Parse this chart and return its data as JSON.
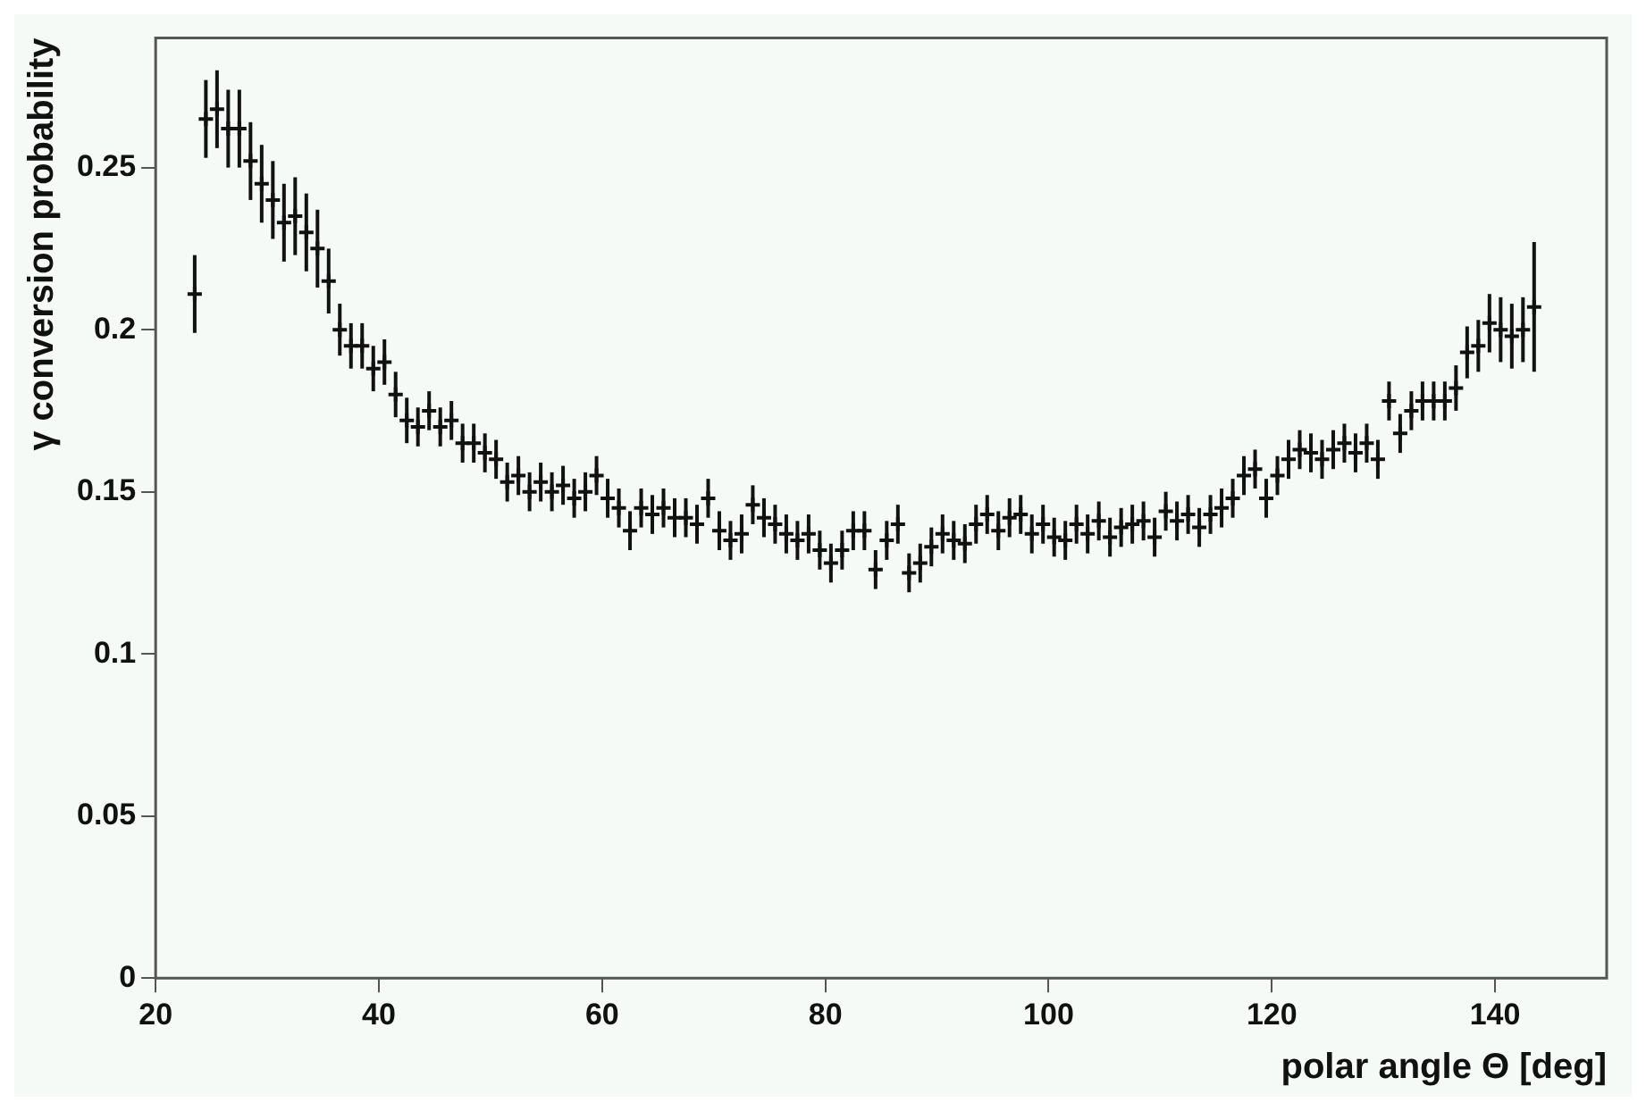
{
  "chart_data": {
    "type": "scatter",
    "xlabel": "polar angle Θ [deg]",
    "ylabel": "γ conversion probability",
    "x": [
      23.5,
      24.5,
      25.5,
      26.5,
      27.5,
      28.5,
      29.5,
      30.5,
      31.5,
      32.5,
      33.5,
      34.5,
      35.5,
      36.5,
      37.5,
      38.5,
      39.5,
      40.5,
      41.5,
      42.5,
      43.5,
      44.5,
      45.5,
      46.5,
      47.5,
      48.5,
      49.5,
      50.5,
      51.5,
      52.5,
      53.5,
      54.5,
      55.5,
      56.5,
      57.5,
      58.5,
      59.5,
      60.5,
      61.5,
      62.5,
      63.5,
      64.5,
      65.5,
      66.5,
      67.5,
      68.5,
      69.5,
      70.5,
      71.5,
      72.5,
      73.5,
      74.5,
      75.5,
      76.5,
      77.5,
      78.5,
      79.5,
      80.5,
      81.5,
      82.5,
      83.5,
      84.5,
      85.5,
      86.5,
      87.5,
      88.5,
      89.5,
      90.5,
      91.5,
      92.5,
      93.5,
      94.5,
      95.5,
      96.5,
      97.5,
      98.5,
      99.5,
      100.5,
      101.5,
      102.5,
      103.5,
      104.5,
      105.5,
      106.5,
      107.5,
      108.5,
      109.5,
      110.5,
      111.5,
      112.5,
      113.5,
      114.5,
      115.5,
      116.5,
      117.5,
      118.5,
      119.5,
      120.5,
      121.5,
      122.5,
      123.5,
      124.5,
      125.5,
      126.5,
      127.5,
      128.5,
      129.5,
      130.5,
      131.5,
      132.5,
      133.5,
      134.5,
      135.5,
      136.5,
      137.5,
      138.5,
      139.5,
      140.5,
      141.5,
      142.5,
      143.5
    ],
    "series": [
      {
        "color": "#111111",
        "values": [
          0.211,
          0.265,
          0.268,
          0.262,
          0.262,
          0.252,
          0.245,
          0.24,
          0.233,
          0.235,
          0.23,
          0.225,
          0.215,
          0.2,
          0.195,
          0.195,
          0.188,
          0.19,
          0.18,
          0.172,
          0.17,
          0.175,
          0.17,
          0.172,
          0.165,
          0.165,
          0.162,
          0.16,
          0.153,
          0.155,
          0.15,
          0.153,
          0.15,
          0.152,
          0.148,
          0.15,
          0.155,
          0.148,
          0.145,
          0.138,
          0.145,
          0.143,
          0.145,
          0.142,
          0.142,
          0.14,
          0.148,
          0.138,
          0.135,
          0.137,
          0.146,
          0.142,
          0.14,
          0.137,
          0.135,
          0.137,
          0.132,
          0.128,
          0.132,
          0.138,
          0.138,
          0.126,
          0.135,
          0.14,
          0.125,
          0.128,
          0.133,
          0.137,
          0.135,
          0.134,
          0.14,
          0.143,
          0.138,
          0.142,
          0.143,
          0.137,
          0.14,
          0.136,
          0.135,
          0.14,
          0.137,
          0.141,
          0.136,
          0.139,
          0.14,
          0.141,
          0.136,
          0.144,
          0.141,
          0.143,
          0.139,
          0.143,
          0.145,
          0.148,
          0.155,
          0.157,
          0.148,
          0.155,
          0.16,
          0.163,
          0.162,
          0.16,
          0.163,
          0.165,
          0.162,
          0.165,
          0.16,
          0.178,
          0.168,
          0.175,
          0.178,
          0.178,
          0.178,
          0.182,
          0.193,
          0.195,
          0.202,
          0.2,
          0.198,
          0.2,
          0.207
        ],
        "errors": [
          0.012,
          0.012,
          0.012,
          0.012,
          0.012,
          0.012,
          0.012,
          0.012,
          0.012,
          0.012,
          0.012,
          0.012,
          0.01,
          0.008,
          0.007,
          0.007,
          0.007,
          0.007,
          0.007,
          0.007,
          0.006,
          0.006,
          0.006,
          0.006,
          0.006,
          0.006,
          0.006,
          0.006,
          0.006,
          0.006,
          0.006,
          0.006,
          0.006,
          0.006,
          0.006,
          0.006,
          0.006,
          0.006,
          0.006,
          0.006,
          0.006,
          0.006,
          0.006,
          0.006,
          0.006,
          0.006,
          0.006,
          0.006,
          0.006,
          0.006,
          0.006,
          0.006,
          0.006,
          0.006,
          0.006,
          0.006,
          0.006,
          0.006,
          0.006,
          0.006,
          0.006,
          0.006,
          0.006,
          0.006,
          0.006,
          0.006,
          0.006,
          0.006,
          0.006,
          0.006,
          0.006,
          0.006,
          0.006,
          0.006,
          0.006,
          0.006,
          0.006,
          0.006,
          0.006,
          0.006,
          0.006,
          0.006,
          0.006,
          0.006,
          0.006,
          0.006,
          0.006,
          0.006,
          0.006,
          0.006,
          0.006,
          0.006,
          0.006,
          0.006,
          0.006,
          0.006,
          0.006,
          0.006,
          0.006,
          0.006,
          0.006,
          0.006,
          0.006,
          0.006,
          0.006,
          0.006,
          0.006,
          0.006,
          0.006,
          0.006,
          0.006,
          0.006,
          0.006,
          0.007,
          0.008,
          0.008,
          0.009,
          0.01,
          0.01,
          0.01,
          0.02
        ]
      }
    ],
    "xlim": [
      20,
      150
    ],
    "xticks": [
      20,
      40,
      60,
      80,
      100,
      120,
      140
    ],
    "ylim": [
      0,
      0.29
    ],
    "yticks": [
      0,
      0.05,
      0.1,
      0.15,
      0.2,
      0.25
    ],
    "marker": "cross",
    "grid": false,
    "legend": false
  }
}
